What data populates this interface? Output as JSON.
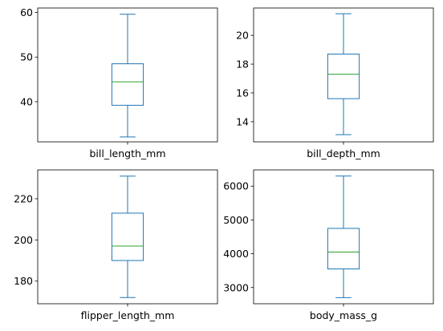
{
  "chart_data": [
    {
      "type": "box",
      "xlabel": "bill_length_mm",
      "ylim": [
        31.0,
        61.0
      ],
      "yticks": [
        40,
        50,
        60
      ],
      "stats": {
        "whislo": 32.1,
        "q1": 39.2,
        "med": 44.45,
        "q3": 48.5,
        "whishi": 59.6
      }
    },
    {
      "type": "box",
      "xlabel": "bill_depth_mm",
      "ylim": [
        12.6,
        21.9
      ],
      "yticks": [
        14,
        16,
        18,
        20
      ],
      "stats": {
        "whislo": 13.1,
        "q1": 15.6,
        "med": 17.3,
        "q3": 18.7,
        "whishi": 21.5
      }
    },
    {
      "type": "box",
      "xlabel": "flipper_length_mm",
      "ylim": [
        169.0,
        234.0
      ],
      "yticks": [
        180,
        200,
        220
      ],
      "stats": {
        "whislo": 172,
        "q1": 190,
        "med": 197,
        "q3": 213,
        "whishi": 231
      }
    },
    {
      "type": "box",
      "xlabel": "body_mass_g",
      "ylim": [
        2520,
        6480
      ],
      "yticks": [
        3000,
        4000,
        5000,
        6000
      ],
      "stats": {
        "whislo": 2700,
        "q1": 3550,
        "med": 4050,
        "q3": 4750,
        "whishi": 6300
      }
    }
  ],
  "colors": {
    "box": "#1f77b4",
    "median": "#2ca02c",
    "axes": "#000000"
  }
}
